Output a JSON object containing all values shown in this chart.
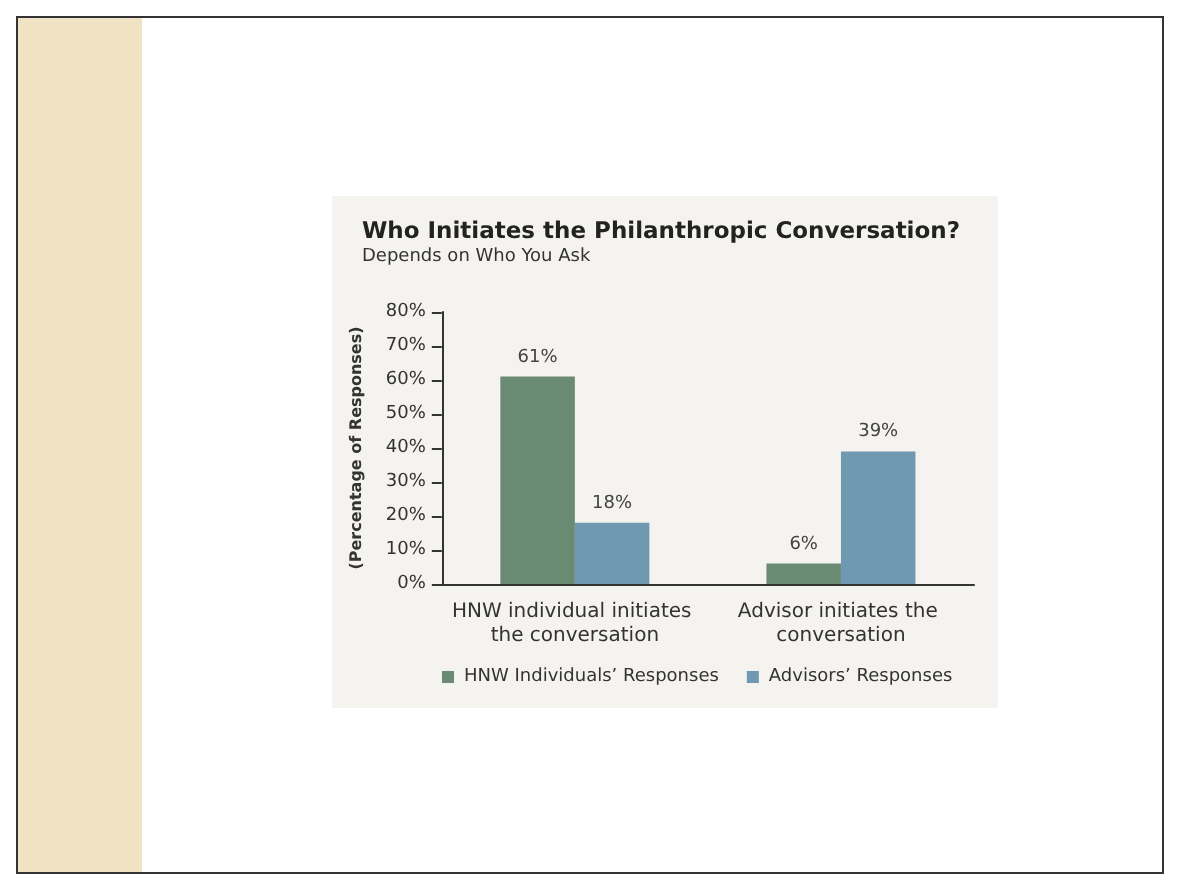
{
  "chart_data": {
    "type": "bar",
    "title": "Who Initiates the Philanthropic Conversation?",
    "subtitle": "Depends on Who You Ask",
    "ylabel": "(Percentage of Responses)",
    "categories": [
      "HNW individual initiates the conversation",
      "Advisor initiates the conversation"
    ],
    "series": [
      {
        "name": "HNW Individuals’ Responses",
        "color": "#6a8a72",
        "values": [
          61,
          6
        ],
        "value_labels": [
          "61%",
          "6%"
        ]
      },
      {
        "name": "Advisors’ Responses",
        "color": "#7098b0",
        "values": [
          18,
          39
        ],
        "value_labels": [
          "18%",
          "39%"
        ]
      }
    ],
    "ylim": [
      0,
      80
    ],
    "yticks": [
      {
        "value": 0,
        "label": "0%"
      },
      {
        "value": 10,
        "label": "10%"
      },
      {
        "value": 20,
        "label": "20%"
      },
      {
        "value": 30,
        "label": "30%"
      },
      {
        "value": 40,
        "label": "40%"
      },
      {
        "value": 50,
        "label": "50%"
      },
      {
        "value": 60,
        "label": "60%"
      },
      {
        "value": 70,
        "label": "70%"
      },
      {
        "value": 80,
        "label": "80%"
      }
    ],
    "grid": false,
    "legend": "bottom"
  }
}
